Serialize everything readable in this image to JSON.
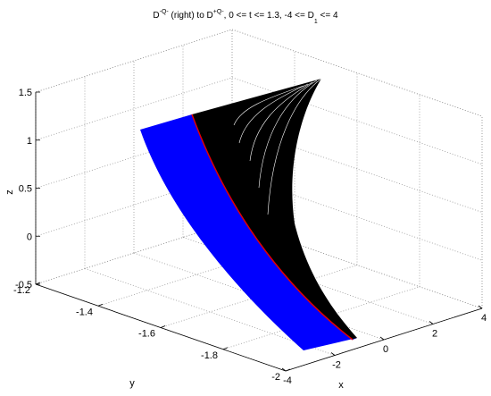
{
  "chart_data": {
    "type": "surface3d",
    "title_parts": [
      "D",
      "-Q-",
      " (right) to D",
      "+Q-",
      ", 0 <= t <= 1.3, -4 <= D",
      "1",
      " <= 4"
    ],
    "xlabel": "x",
    "ylabel": "y",
    "zlabel": "z",
    "xlim": [
      -4,
      4
    ],
    "xticks": [
      -4,
      -2,
      0,
      2,
      4
    ],
    "ylim": [
      -2,
      -1.2
    ],
    "yticks": [
      -1.2,
      -1.4,
      -1.6,
      -1.8,
      -2
    ],
    "zlim": [
      -0.5,
      1.5
    ],
    "zticks": [
      -0.5,
      0,
      0.5,
      1,
      1.5
    ],
    "grid": true
  }
}
